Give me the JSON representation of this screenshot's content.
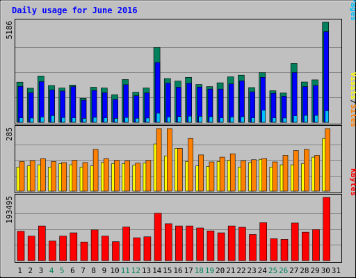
{
  "chart_data": {
    "type": "bar",
    "title": "Daily usage for June 2016",
    "colors": {
      "background": "#C0C0C0",
      "hits": "#00805C",
      "files": "#0000FF",
      "pages": "#00C0FF",
      "visits": "#FFFF00",
      "sites": "#FF8000",
      "kbytes": "#FF0000",
      "title": "#0000FF",
      "weekend_day": "#00805C",
      "weekday": "#000000"
    },
    "days": [
      "1",
      "2",
      "3",
      "4",
      "5",
      "6",
      "7",
      "8",
      "9",
      "10",
      "11",
      "12",
      "13",
      "14",
      "15",
      "16",
      "17",
      "18",
      "19",
      "20",
      "21",
      "22",
      "23",
      "24",
      "25",
      "26",
      "27",
      "28",
      "29",
      "30",
      "31"
    ],
    "weekend_days": [
      "4",
      "5",
      "11",
      "12",
      "18",
      "19",
      "25",
      "26"
    ],
    "panels": [
      {
        "id": "hits_files_pages",
        "max_label": "5186",
        "ylim": [
          0,
          5186
        ],
        "legend": [
          {
            "text": "Pages",
            "color": "#00C0FF"
          },
          {
            "text": "/",
            "color": "#000000"
          },
          {
            "text": "Files",
            "color": "#0000FF"
          },
          {
            "text": "/",
            "color": "#000000"
          },
          {
            "text": "Hits",
            "color": "#00805C"
          }
        ],
        "series": [
          {
            "name": "Hits",
            "color": "#00805C",
            "values": [
              2080,
              1770,
              2400,
              1910,
              1780,
              1930,
              1250,
              1820,
              1780,
              1430,
              2220,
              1560,
              1780,
              3880,
              2270,
              2140,
              2330,
              1960,
              1850,
              2050,
              2360,
              2440,
              1800,
              2580,
              1640,
              1520,
              3050,
              2090,
              2200,
              5186,
              null
            ]
          },
          {
            "name": "Files",
            "color": "#0000FF",
            "values": [
              1860,
              1530,
              2110,
              1680,
              1620,
              1850,
              1150,
              1650,
              1530,
              1190,
              1950,
              1380,
              1520,
              3100,
              2030,
              1820,
              2020,
              1830,
              1720,
              1720,
              1990,
              2150,
              1580,
              2330,
              1510,
              1350,
              2580,
              1850,
              1910,
              4700,
              null
            ]
          },
          {
            "name": "Pages",
            "color": "#00C0FF",
            "values": [
              230,
              220,
              280,
              350,
              250,
              230,
              200,
              260,
              230,
              200,
              250,
              210,
              220,
              470,
              280,
              300,
              320,
              310,
              290,
              230,
              280,
              290,
              230,
              630,
              230,
              220,
              340,
              360,
              360,
              600,
              null
            ]
          }
        ]
      },
      {
        "id": "sites_visits",
        "max_label": "285",
        "ylim": [
          0,
          285
        ],
        "legend": [
          {
            "text": "Sites",
            "color": "#FF8000"
          },
          {
            "text": "/",
            "color": "#000000"
          },
          {
            "text": "Visits",
            "color": "#FFFF00"
          }
        ],
        "series": [
          {
            "name": "Visits",
            "color": "#FFFF00",
            "values": [
              110,
              115,
              120,
              110,
              125,
              120,
              110,
              115,
              130,
              125,
              125,
              118,
              128,
              215,
              160,
              195,
              135,
              115,
              112,
              135,
              140,
              110,
              130,
              145,
              110,
              120,
              120,
              125,
              155,
              240,
              null
            ]
          },
          {
            "name": "Sites",
            "color": "#FF8000",
            "values": [
              135,
              138,
              148,
              135,
              130,
              140,
              130,
              190,
              148,
              140,
              138,
              128,
              140,
              285,
              285,
              195,
              240,
              165,
              133,
              155,
              170,
              138,
              143,
              148,
              133,
              163,
              185,
              190,
              163,
              285,
              null
            ]
          }
        ]
      },
      {
        "id": "kbytes",
        "max_label": "193495",
        "ylim": [
          0,
          193495
        ],
        "legend": [
          {
            "text": "KBytes",
            "color": "#FF0000"
          }
        ],
        "series": [
          {
            "name": "KBytes",
            "color": "#FF0000",
            "values": [
              90000,
              75000,
              106000,
              60000,
              75000,
              85000,
              57000,
              94000,
              75000,
              58000,
              103000,
              70000,
              73000,
              145000,
              113000,
              106000,
              106000,
              100000,
              91000,
              85000,
              106000,
              102000,
              80000,
              116000,
              67000,
              65000,
              115000,
              87000,
              95000,
              193495,
              null
            ]
          }
        ]
      }
    ]
  }
}
